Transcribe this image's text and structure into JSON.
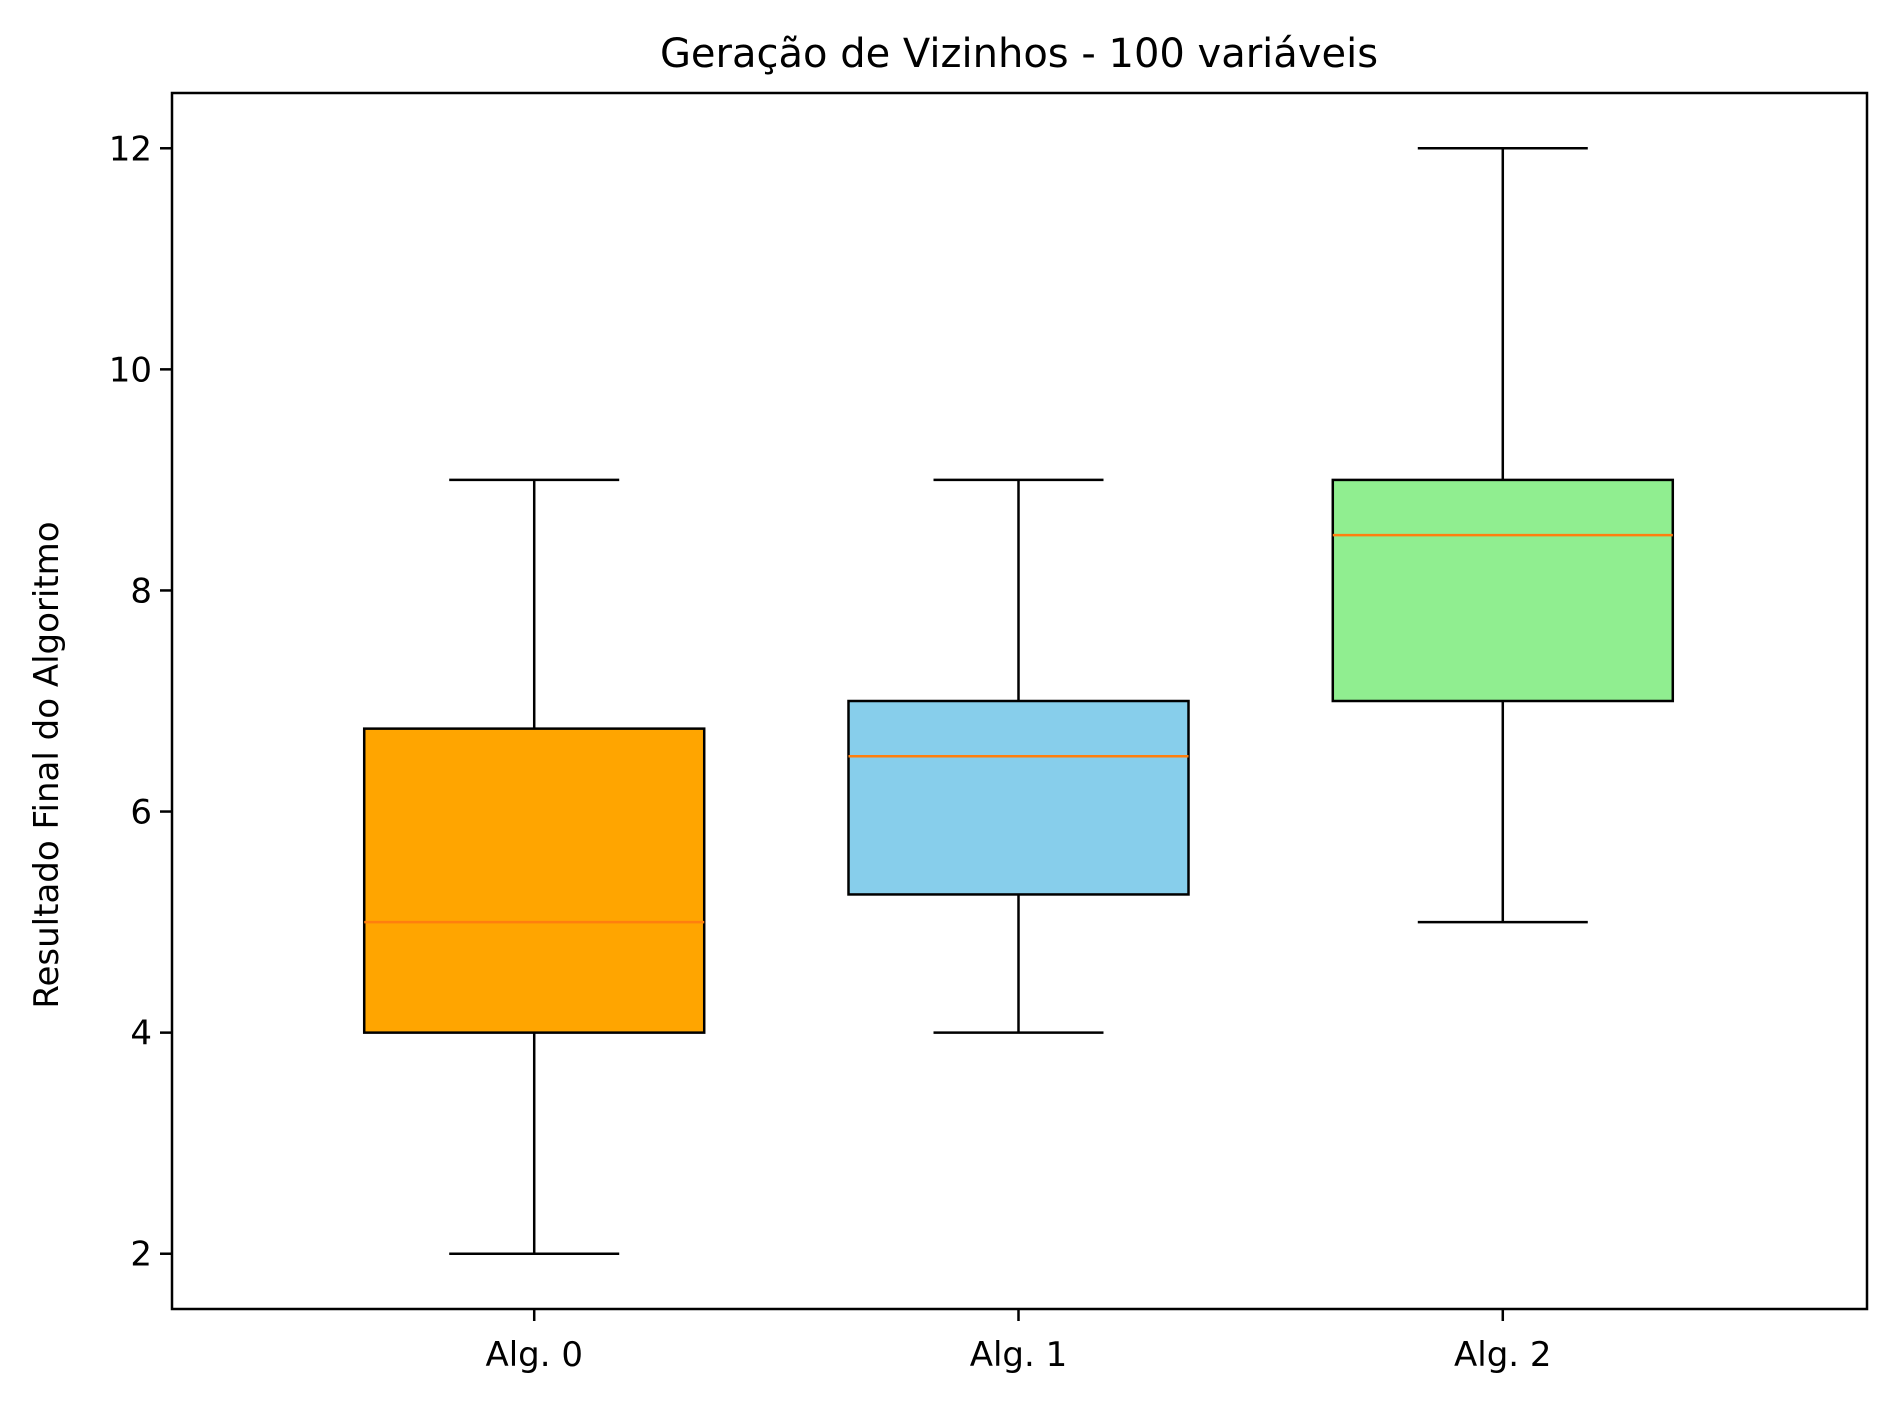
{
  "chart_data": {
    "type": "box",
    "title": "Geração de Vizinhos - 100 variáveis",
    "xlabel": "",
    "ylabel": "Resultado Final do Algoritmo",
    "ylim": [
      1.5,
      12.5
    ],
    "yticks": [
      2,
      4,
      6,
      8,
      10,
      12
    ],
    "grid": false,
    "median_color": "#ff7f0e",
    "categories": [
      "Alg. 0",
      "Alg. 1",
      "Alg. 2"
    ],
    "boxes": [
      {
        "label": "Alg. 0",
        "whisker_low": 2,
        "q1": 4,
        "median": 5,
        "q3": 6.75,
        "whisker_high": 9,
        "color": "#ffa500"
      },
      {
        "label": "Alg. 1",
        "whisker_low": 4,
        "q1": 5.25,
        "median": 6.5,
        "q3": 7,
        "whisker_high": 9,
        "color": "#87ceeb"
      },
      {
        "label": "Alg. 2",
        "whisker_low": 5,
        "q1": 7,
        "median": 8.5,
        "q3": 9,
        "whisker_high": 12,
        "color": "#90ee90"
      }
    ]
  }
}
